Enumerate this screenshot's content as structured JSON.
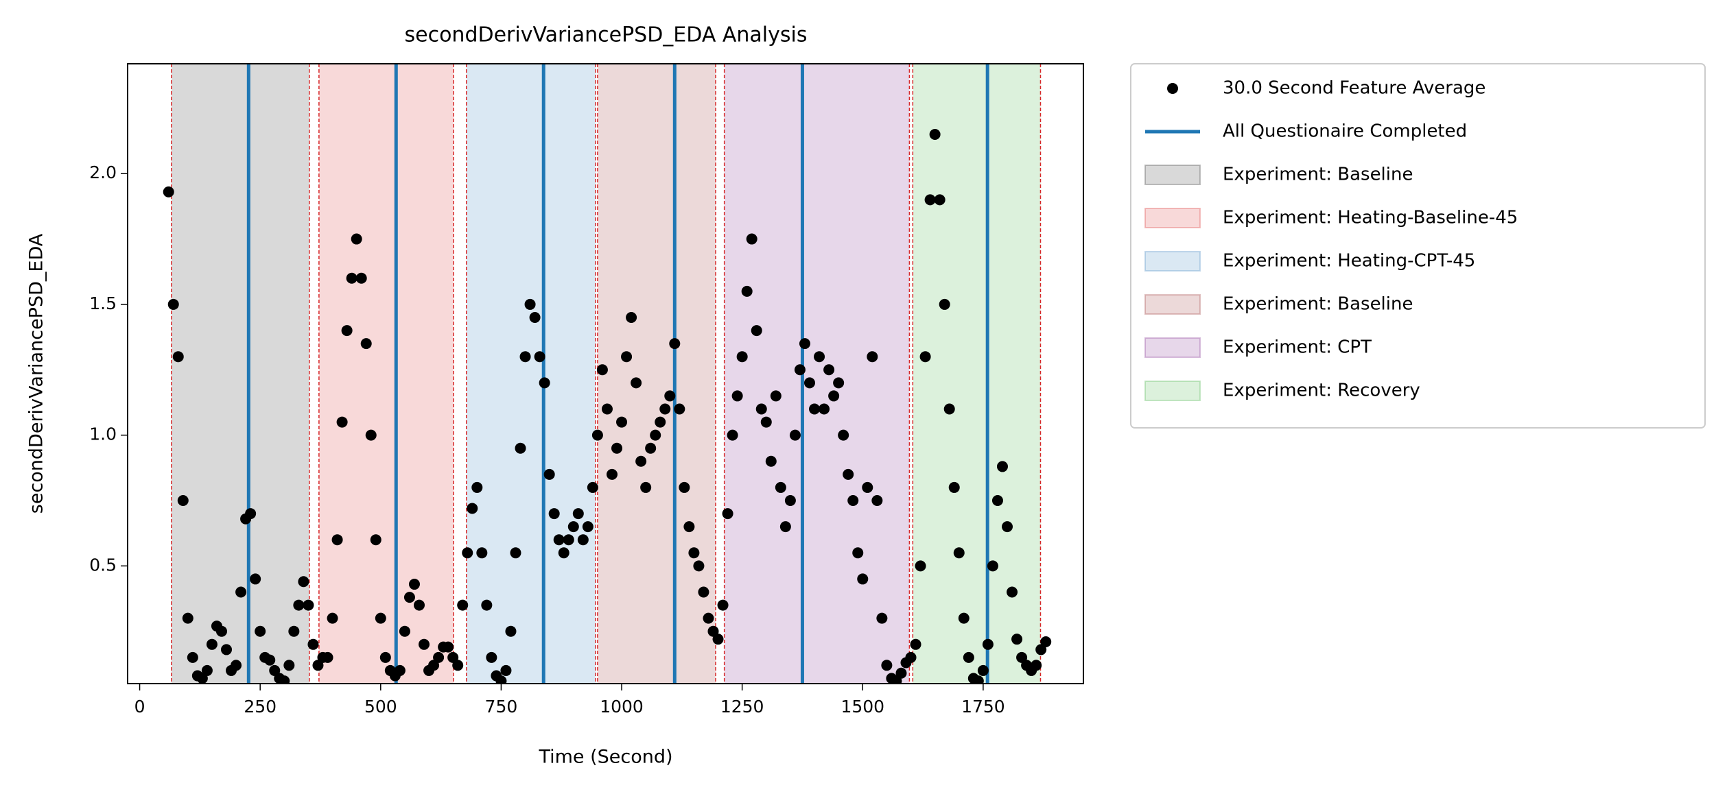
{
  "chart_data": {
    "type": "scatter",
    "title": "secondDerivVariancePSD_EDA Analysis",
    "x_label": "Time (Second)",
    "y_label": "secondDerivVariancePSD_EDA",
    "x": [
      60,
      70,
      80,
      90,
      100,
      110,
      120,
      130,
      140,
      150,
      160,
      170,
      180,
      190,
      200,
      210,
      220,
      230,
      240,
      250,
      260,
      270,
      280,
      290,
      300,
      310,
      320,
      330,
      340,
      350,
      360,
      370,
      380,
      390,
      400,
      410,
      420,
      430,
      440,
      450,
      460,
      470,
      480,
      490,
      500,
      510,
      520,
      530,
      540,
      550,
      560,
      570,
      580,
      590,
      600,
      610,
      620,
      630,
      640,
      650,
      660,
      670,
      680,
      690,
      700,
      710,
      720,
      730,
      740,
      750,
      760,
      770,
      780,
      790,
      800,
      810,
      820,
      830,
      840,
      850,
      860,
      870,
      880,
      890,
      900,
      910,
      920,
      930,
      940,
      950,
      960,
      970,
      980,
      990,
      1000,
      1010,
      1020,
      1030,
      1040,
      1050,
      1060,
      1070,
      1080,
      1090,
      1100,
      1110,
      1120,
      1130,
      1140,
      1150,
      1160,
      1170,
      1180,
      1190,
      1200,
      1210,
      1220,
      1230,
      1240,
      1250,
      1260,
      1270,
      1280,
      1290,
      1300,
      1310,
      1320,
      1330,
      1340,
      1350,
      1360,
      1370,
      1380,
      1390,
      1400,
      1410,
      1420,
      1430,
      1440,
      1450,
      1460,
      1470,
      1480,
      1490,
      1500,
      1510,
      1520,
      1530,
      1540,
      1550,
      1560,
      1570,
      1580,
      1590,
      1600,
      1610,
      1620,
      1630,
      1640,
      1650,
      1660,
      1670,
      1680,
      1690,
      1700,
      1710,
      1720,
      1730,
      1740,
      1750,
      1760,
      1770,
      1780,
      1790,
      1800,
      1810,
      1820,
      1830,
      1840,
      1850,
      1860,
      1870,
      1880
    ],
    "series": [
      {
        "name": "30.0 Second Feature Average",
        "color": "#000000",
        "values": [
          1.93,
          1.5,
          1.3,
          0.75,
          0.3,
          0.15,
          0.08,
          0.07,
          0.1,
          0.2,
          0.27,
          0.25,
          0.18,
          0.1,
          0.12,
          0.4,
          0.68,
          0.7,
          0.45,
          0.25,
          0.15,
          0.14,
          0.1,
          0.07,
          0.06,
          0.12,
          0.25,
          0.35,
          0.44,
          0.35,
          0.2,
          0.12,
          0.15,
          0.15,
          0.3,
          0.6,
          1.05,
          1.4,
          1.6,
          1.75,
          1.6,
          1.35,
          1.0,
          0.6,
          0.3,
          0.15,
          0.1,
          0.08,
          0.1,
          0.25,
          0.38,
          0.43,
          0.35,
          0.2,
          0.1,
          0.12,
          0.15,
          0.19,
          0.19,
          0.15,
          0.12,
          0.35,
          0.55,
          0.72,
          0.8,
          0.55,
          0.35,
          0.15,
          0.08,
          0.06,
          0.1,
          0.25,
          0.55,
          0.95,
          1.3,
          1.5,
          1.45,
          1.3,
          1.2,
          0.85,
          0.7,
          0.6,
          0.55,
          0.6,
          0.65,
          0.7,
          0.6,
          0.65,
          0.8,
          1.0,
          1.25,
          1.1,
          0.85,
          0.95,
          1.05,
          1.3,
          1.45,
          1.2,
          0.9,
          0.8,
          0.95,
          1.0,
          1.05,
          1.1,
          1.15,
          1.35,
          1.1,
          0.8,
          0.65,
          0.55,
          0.5,
          0.4,
          0.3,
          0.25,
          0.22,
          0.35,
          0.7,
          1.0,
          1.15,
          1.3,
          1.55,
          1.75,
          1.4,
          1.1,
          1.05,
          0.9,
          1.15,
          0.8,
          0.65,
          0.75,
          1.0,
          1.25,
          1.35,
          1.2,
          1.1,
          1.3,
          1.1,
          1.25,
          1.15,
          1.2,
          1.0,
          0.85,
          0.75,
          0.55,
          0.45,
          0.8,
          1.3,
          0.75,
          0.3,
          0.12,
          0.07,
          0.06,
          0.09,
          0.13,
          0.15,
          0.2,
          0.5,
          1.3,
          1.9,
          2.15,
          1.9,
          1.5,
          1.1,
          0.8,
          0.55,
          0.3,
          0.15,
          0.07,
          0.06,
          0.1,
          0.2,
          0.5,
          0.75,
          0.88,
          0.65,
          0.4,
          0.22,
          0.15,
          0.12,
          0.1,
          0.12,
          0.18,
          0.21
        ]
      }
    ],
    "vlines": {
      "name": "All Questionaire Completed",
      "color": "#1f77b4",
      "x": [
        226,
        532,
        838,
        1110,
        1375,
        1759
      ]
    },
    "spans": [
      {
        "name": "Experiment: Baseline",
        "color": "#808080",
        "start": 66,
        "end": 352
      },
      {
        "name": "Experiment: Heating-Baseline-45",
        "color": "#e88080",
        "start": 372,
        "end": 651
      },
      {
        "name": "Experiment: Heating-CPT-45",
        "color": "#86b2d8",
        "start": 678,
        "end": 946
      },
      {
        "name": "Experiment: Baseline",
        "color": "#c08080",
        "start": 950,
        "end": 1195
      },
      {
        "name": "Experiment: CPT",
        "color": "#b07ab8",
        "start": 1213,
        "end": 1597
      },
      {
        "name": "Experiment: Recovery",
        "color": "#8ccf8c",
        "start": 1604,
        "end": 1869
      }
    ],
    "span_edge_color": "#d62728",
    "xlim": [
      -25,
      1958
    ],
    "ylim": [
      0.05,
      2.42
    ],
    "xticks": [
      0,
      250,
      500,
      750,
      1000,
      1250,
      1500,
      1750
    ],
    "yticks": [
      0.5,
      {
        "value": 1,
        "label": "1.0"
      },
      1.5,
      {
        "value": 2,
        "label": "2.0"
      }
    ],
    "grid": false,
    "legend": "outside right"
  }
}
